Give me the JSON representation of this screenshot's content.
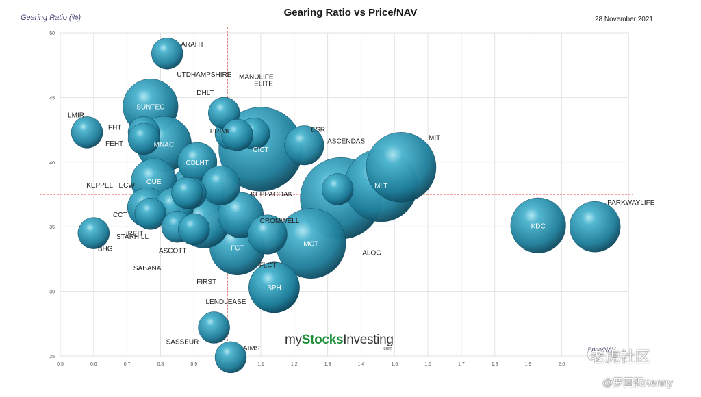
{
  "header": {
    "title": "Gearing Ratio vs Price/NAV",
    "date": "28 November 2021",
    "ylabel": "Gearing Ratio (%)"
  },
  "brand": {
    "prefix": "my",
    "bold": "Stocks",
    "suffix": "Investing",
    "tld": ".com"
  },
  "watermark": {
    "line1": "老虎社区",
    "line2": "@罗国强Kenny"
  },
  "chart_data": {
    "type": "bubble",
    "title": "Gearing Ratio vs Price/NAV",
    "xlabel": "Price/NAV",
    "ylabel": "Gearing Ratio (%)",
    "xlim": [
      0.5,
      2.2
    ],
    "ylim": [
      25,
      50
    ],
    "xticks": [
      "0.5",
      "0.6",
      "0.7",
      "0.8",
      "0.9",
      "1.0",
      "1.1",
      "1.2",
      "1.3",
      "1.4",
      "1.5",
      "1.6",
      "1.7",
      "1.8",
      "1.9",
      "2.0"
    ],
    "yticks": [
      "25",
      "30",
      "35",
      "40",
      "45",
      "50"
    ],
    "reference_lines": {
      "x": 1.0,
      "y": 37.5
    },
    "grid": true,
    "bubble_color": "#2a8fad",
    "points": [
      {
        "name": "ARAHT",
        "x": 0.82,
        "y": 48.4,
        "size": 1
      },
      {
        "name": "UTDHAMPSHIRE",
        "x": 0.89,
        "y": 37.6,
        "size": 1
      },
      {
        "name": "MANULIFE",
        "x": 1.01,
        "y": 42.2,
        "size": 1
      },
      {
        "name": "ELITE",
        "x": 1.08,
        "y": 42.2,
        "size": 1
      },
      {
        "name": "DHLT",
        "x": 0.99,
        "y": 43.8,
        "size": 1
      },
      {
        "name": "SUNTEC",
        "x": 0.77,
        "y": 44.3,
        "size": 5
      },
      {
        "name": "LMIR",
        "x": 0.58,
        "y": 42.3,
        "size": 1
      },
      {
        "name": "FHT",
        "x": 0.75,
        "y": 42.3,
        "size": 1
      },
      {
        "name": "FEHT",
        "x": 0.75,
        "y": 41.8,
        "size": 1
      },
      {
        "name": "MNAC",
        "x": 0.81,
        "y": 41.4,
        "size": 5
      },
      {
        "name": "PRIME",
        "x": 1.03,
        "y": 42.1,
        "size": 1
      },
      {
        "name": "CICT",
        "x": 1.1,
        "y": 41.0,
        "size": 14
      },
      {
        "name": "ESR",
        "x": 1.23,
        "y": 41.3,
        "size": 2
      },
      {
        "name": "ASCENDAS",
        "x": 1.34,
        "y": 37.2,
        "size": 13
      },
      {
        "name": "MIT",
        "x": 1.52,
        "y": 39.6,
        "size": 9
      },
      {
        "name": "CDLHT",
        "x": 0.91,
        "y": 40.0,
        "size": 2
      },
      {
        "name": "ECW",
        "x": 0.88,
        "y": 37.6,
        "size": 1
      },
      {
        "name": "OUE",
        "x": 0.78,
        "y": 38.5,
        "size": 3
      },
      {
        "name": "KEPPEL",
        "x": 0.91,
        "y": 37.7,
        "size": 5
      },
      {
        "name": "KEPPACOAK",
        "x": 0.98,
        "y": 38.2,
        "size": 2
      },
      {
        "name": "MLT",
        "x": 1.46,
        "y": 38.2,
        "size": 10
      },
      {
        "name": "PARKWAYLIFE",
        "x": 2.1,
        "y": 35.0,
        "size": 4
      },
      {
        "name": "KDC",
        "x": 1.93,
        "y": 35.1,
        "size": 5
      },
      {
        "name": "CROMWELL",
        "x": 1.04,
        "y": 35.9,
        "size": 3
      },
      {
        "name": "CCT",
        "x": 0.76,
        "y": 36.5,
        "size": 2
      },
      {
        "name": "IREIT",
        "x": 0.77,
        "y": 36.0,
        "size": 1
      },
      {
        "name": "BHG",
        "x": 0.6,
        "y": 34.5,
        "size": 1
      },
      {
        "name": "STARHILL",
        "x": 0.84,
        "y": 36.5,
        "size": 2
      },
      {
        "name": "ASCOTT",
        "x": 0.93,
        "y": 35.3,
        "size": 4
      },
      {
        "name": "SABANA",
        "x": 0.85,
        "y": 35.0,
        "size": 1
      },
      {
        "name": "FIRST",
        "x": 0.9,
        "y": 34.8,
        "size": 1
      },
      {
        "name": "FCT",
        "x": 1.03,
        "y": 33.4,
        "size": 5
      },
      {
        "name": "FLCT",
        "x": 1.12,
        "y": 34.4,
        "size": 2
      },
      {
        "name": "MCT",
        "x": 1.25,
        "y": 33.7,
        "size": 9
      },
      {
        "name": "ALOG",
        "x": 1.33,
        "y": 37.9,
        "size": 1
      },
      {
        "name": "LENDLEASE",
        "x": 1.14,
        "y": 30.3,
        "size": 4
      },
      {
        "name": "SPH",
        "x": 1.14,
        "y": 30.3,
        "size": 4
      },
      {
        "name": "SASSEUR",
        "x": 0.96,
        "y": 27.2,
        "size": 1
      },
      {
        "name": "AIMS",
        "x": 1.01,
        "y": 24.9,
        "size": 1
      }
    ]
  }
}
